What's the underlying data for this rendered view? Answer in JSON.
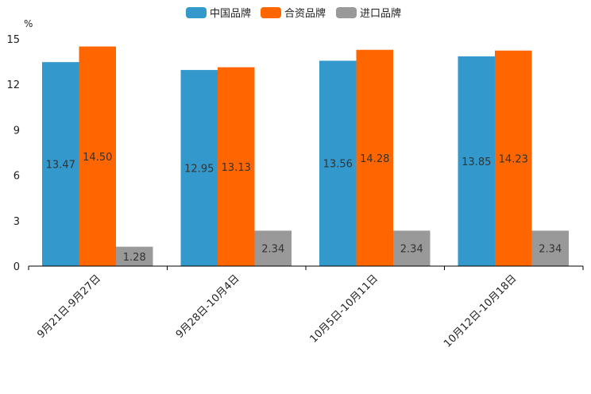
{
  "chart_data": {
    "type": "bar",
    "ylabel": "%",
    "ylim": [
      0,
      15
    ],
    "yticks": [
      "0",
      "3",
      "6",
      "9",
      "12",
      "15"
    ],
    "categories": [
      "9月21日-9月27日",
      "9月28日-10月4日",
      "10月5日-10月11日",
      "10月12日-10月18日"
    ],
    "series": [
      {
        "name": "中国品牌",
        "color": "#3399cc",
        "values": [
          13.47,
          12.95,
          13.56,
          13.85
        ],
        "labels": [
          "13.47",
          "12.95",
          "13.56",
          "13.85"
        ]
      },
      {
        "name": "合资品牌",
        "color": "#ff6600",
        "values": [
          14.5,
          13.13,
          14.28,
          14.23
        ],
        "labels": [
          "14.50",
          "13.13",
          "14.28",
          "14.23"
        ]
      },
      {
        "name": "进口品牌",
        "color": "#999999",
        "values": [
          1.28,
          2.34,
          2.34,
          2.34
        ],
        "labels": [
          "1.28",
          "2.34",
          "2.34",
          "2.34"
        ]
      }
    ],
    "legend": "top-center",
    "grid": false
  }
}
